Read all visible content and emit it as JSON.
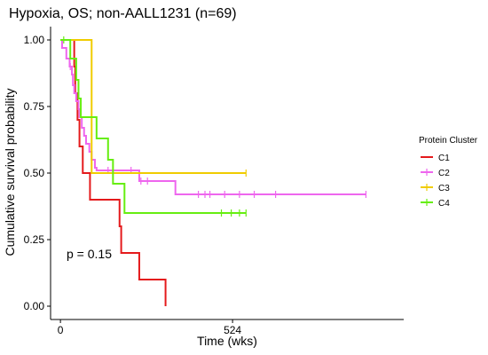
{
  "chart_data": {
    "type": "line",
    "title": "Hypoxia, OS; non-AALL1231 (n=69)",
    "xlabel": "Time (wks)",
    "ylabel": "Cumulative survival probability",
    "xlim": [
      -30,
      1045
    ],
    "ylim": [
      -0.05,
      1.05
    ],
    "x_ticks": [
      0,
      524
    ],
    "y_ticks": [
      0.0,
      0.25,
      0.5,
      0.75,
      1.0
    ],
    "y_tick_labels": [
      "0.00",
      "0.25",
      "0.50",
      "0.75",
      "1.00"
    ],
    "annotation": "p = 0.15",
    "legend_title": "Protein Cluster",
    "legend_position": "right",
    "grid": false,
    "series": [
      {
        "name": "C1",
        "color": "#e41a1c",
        "steps": [
          [
            0,
            1.0
          ],
          [
            42,
            0.9
          ],
          [
            45,
            0.8
          ],
          [
            52,
            0.7
          ],
          [
            58,
            0.6
          ],
          [
            68,
            0.5
          ],
          [
            90,
            0.4
          ],
          [
            180,
            0.3
          ],
          [
            185,
            0.2
          ],
          [
            240,
            0.1
          ],
          [
            320,
            0.0
          ]
        ],
        "end": 320,
        "censored": []
      },
      {
        "name": "C2",
        "color": "#ee66ee",
        "steps": [
          [
            0,
            1.0
          ],
          [
            5,
            0.97
          ],
          [
            18,
            0.93
          ],
          [
            28,
            0.9
          ],
          [
            35,
            0.87
          ],
          [
            38,
            0.83
          ],
          [
            42,
            0.8
          ],
          [
            48,
            0.77
          ],
          [
            55,
            0.74
          ],
          [
            58,
            0.71
          ],
          [
            65,
            0.67
          ],
          [
            72,
            0.64
          ],
          [
            78,
            0.61
          ],
          [
            88,
            0.58
          ],
          [
            95,
            0.55
          ],
          [
            105,
            0.52
          ],
          [
            110,
            0.51
          ],
          [
            240,
            0.47
          ],
          [
            350,
            0.42
          ]
        ],
        "end": 930,
        "censored": [
          [
            30,
            0.9
          ],
          [
            145,
            0.51
          ],
          [
            160,
            0.51
          ],
          [
            215,
            0.51
          ],
          [
            245,
            0.47
          ],
          [
            265,
            0.47
          ],
          [
            420,
            0.42
          ],
          [
            440,
            0.42
          ],
          [
            455,
            0.42
          ],
          [
            500,
            0.42
          ],
          [
            545,
            0.42
          ],
          [
            590,
            0.42
          ],
          [
            655,
            0.42
          ],
          [
            930,
            0.42
          ]
        ]
      },
      {
        "name": "C3",
        "color": "#f0cc00",
        "steps": [
          [
            0,
            1.0
          ],
          [
            95,
            0.5
          ]
        ],
        "end": 565,
        "censored": [
          [
            565,
            0.5
          ]
        ]
      },
      {
        "name": "C4",
        "color": "#66ee11",
        "steps": [
          [
            0,
            1.0
          ],
          [
            30,
            0.93
          ],
          [
            48,
            0.85
          ],
          [
            55,
            0.78
          ],
          [
            62,
            0.71
          ],
          [
            110,
            0.63
          ],
          [
            145,
            0.55
          ],
          [
            160,
            0.46
          ],
          [
            195,
            0.35
          ]
        ],
        "end": 565,
        "censored": [
          [
            10,
            1.0
          ],
          [
            490,
            0.35
          ],
          [
            520,
            0.35
          ],
          [
            545,
            0.35
          ],
          [
            565,
            0.35
          ]
        ]
      }
    ]
  }
}
